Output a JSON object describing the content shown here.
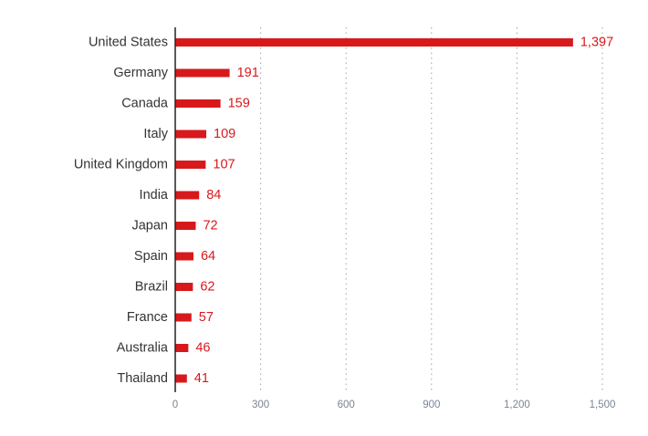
{
  "chart_data": {
    "type": "bar",
    "orientation": "horizontal",
    "title": "",
    "xlabel": "",
    "ylabel": "",
    "categories": [
      "United States",
      "Germany",
      "Canada",
      "Italy",
      "United Kingdom",
      "India",
      "Japan",
      "Spain",
      "Brazil",
      "France",
      "Australia",
      "Thailand"
    ],
    "values": [
      1397,
      191,
      159,
      109,
      107,
      84,
      72,
      64,
      62,
      57,
      46,
      41
    ],
    "value_labels": [
      "1,397",
      "191",
      "159",
      "109",
      "107",
      "84",
      "72",
      "64",
      "62",
      "57",
      "46",
      "41"
    ],
    "xlim": [
      0,
      1500
    ],
    "xticks": [
      0,
      300,
      600,
      900,
      1200,
      1500
    ],
    "xtick_labels": [
      "0",
      "300",
      "600",
      "900",
      "1,200",
      "1,500"
    ],
    "grid": "vertical dotted",
    "legend": "none",
    "colors": {
      "bar": "#d7191c",
      "value_label": "#d7191c",
      "category_label": "#333333",
      "tick_label": "#7a8594",
      "axis": "#222222",
      "grid": "#9aa3ad"
    }
  }
}
